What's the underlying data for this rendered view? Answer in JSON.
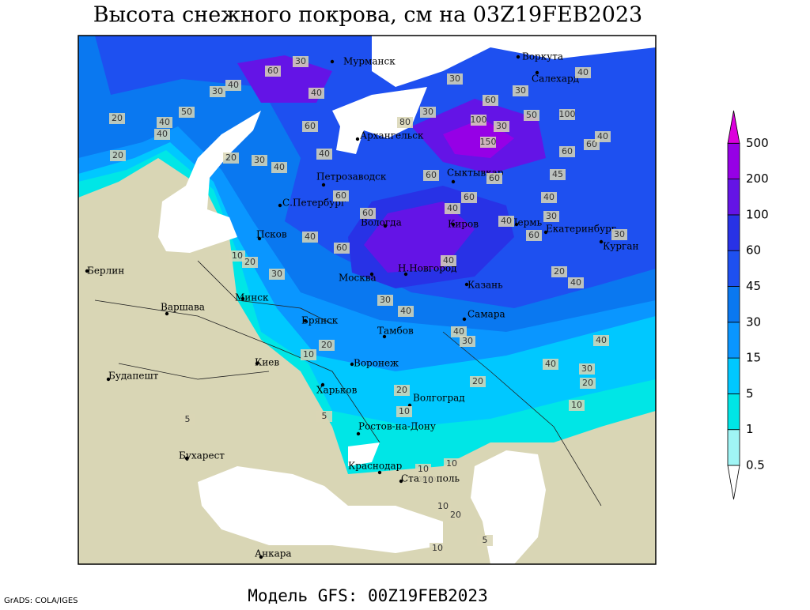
{
  "title": "Высота снежного покрова, см на 03Z19FEB2023",
  "footer": "Модель GFS: 00Z19FEB2023",
  "credit": "GrADS: COLA/IGES",
  "cities": [
    "Мурманск",
    "Воркута",
    "Салехард",
    "Архангельск",
    "Сыктывкар",
    "Петрозаводск",
    "С.Петербург",
    "Вологда",
    "Киров",
    "Пермь",
    "Екатеринбург",
    "Курган",
    "Псков",
    "Берлин",
    "Варшава",
    "Минск",
    "Москва",
    "Н.Новгород",
    "Казань",
    "Самара",
    "Брянск",
    "Тамбов",
    "Воронеж",
    "Киев",
    "Будапешт",
    "Харьков",
    "Волгоград",
    "Ростов-на-Дону",
    "Бухарест",
    "Краснодар",
    "Ставрополь",
    "Анкара"
  ],
  "contour_labels": [
    30,
    60,
    40,
    30,
    50,
    40,
    40,
    20,
    20,
    20,
    30,
    40,
    40,
    60,
    40,
    80,
    30,
    30,
    60,
    100,
    30,
    150,
    100,
    50,
    60,
    60,
    40,
    30,
    40,
    60,
    60,
    45,
    60,
    60,
    40,
    60,
    40,
    30,
    40,
    60,
    30,
    40,
    60,
    10,
    20,
    30,
    40,
    20,
    40,
    30,
    40,
    40,
    30,
    40,
    40,
    30,
    20,
    20,
    10,
    20,
    20,
    10,
    10,
    5,
    5,
    10,
    10,
    10,
    10,
    20,
    5,
    10
  ],
  "colorbar": {
    "labels": [
      0.5,
      1,
      5,
      15,
      30,
      45,
      60,
      100,
      200,
      500
    ],
    "colors": [
      "#ffffff",
      "#a0f5f5",
      "#00e6e6",
      "#00c8ff",
      "#0a96ff",
      "#0a78f0",
      "#1e50f0",
      "#2832e6",
      "#6414e6",
      "#9600e6",
      "#dc00dc"
    ]
  }
}
